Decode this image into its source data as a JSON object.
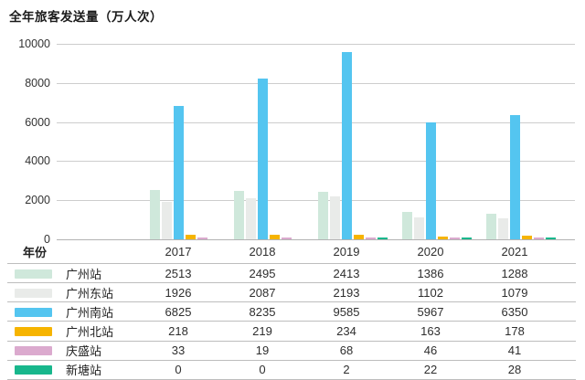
{
  "title": "全年旅客发送量（万人次）",
  "x_axis_header": "年份",
  "chart_data": {
    "type": "bar",
    "title": "全年旅客发送量（万人次）",
    "xlabel": "年份",
    "ylabel": "",
    "categories": [
      "2017",
      "2018",
      "2019",
      "2020",
      "2021"
    ],
    "series": [
      {
        "name": "广州站",
        "color": "#cfe8db",
        "values": [
          2513,
          2495,
          2413,
          1386,
          1288
        ]
      },
      {
        "name": "广州东站",
        "color": "#e9ebe9",
        "values": [
          1926,
          2087,
          2193,
          1102,
          1079
        ]
      },
      {
        "name": "广州南站",
        "color": "#54c5f0",
        "values": [
          6825,
          8235,
          9585,
          5967,
          6350
        ]
      },
      {
        "name": "广州北站",
        "color": "#f6b400",
        "values": [
          218,
          219,
          234,
          163,
          178
        ]
      },
      {
        "name": "庆盛站",
        "color": "#dbaace",
        "values": [
          33,
          19,
          68,
          46,
          41
        ]
      },
      {
        "name": "新塘站",
        "color": "#18b78c",
        "values": [
          0,
          0,
          2,
          22,
          28
        ]
      }
    ],
    "ylim": [
      0,
      10000
    ],
    "yticks": [
      0,
      2000,
      4000,
      6000,
      8000,
      10000
    ],
    "grid": true,
    "legend_position": "table-left"
  }
}
